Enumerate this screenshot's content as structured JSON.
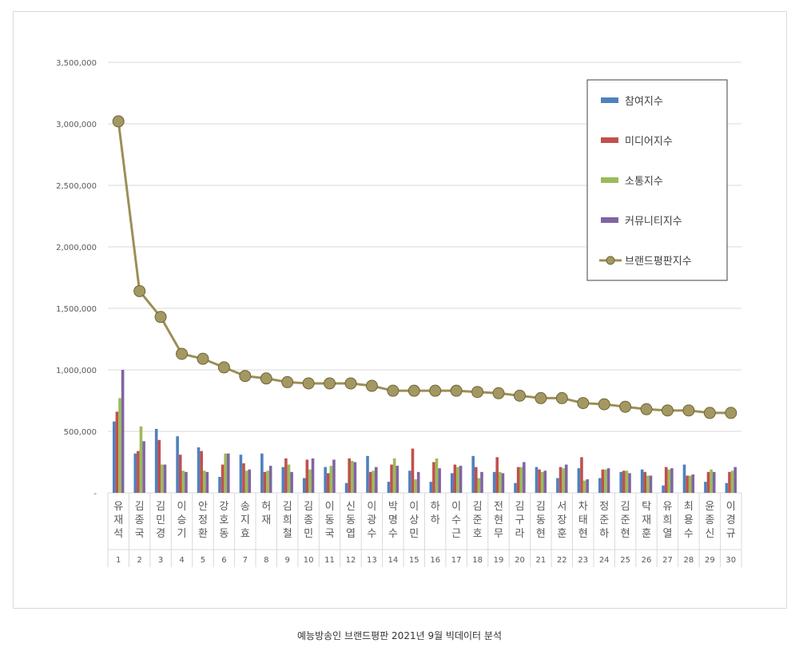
{
  "caption": "예능방송인 브랜드평판  2021년 9월 빅데이터 분석",
  "chart_data": {
    "type": "bar",
    "title": "",
    "xlabel": "",
    "ylabel": "",
    "ylim": [
      0,
      3500000
    ],
    "y_ticks": [
      0,
      500000,
      1000000,
      1500000,
      2000000,
      2500000,
      3000000,
      3500000
    ],
    "y_tick_labels": [
      "-",
      "500,000",
      "1,000,000",
      "1,500,000",
      "2,000,000",
      "2,500,000",
      "3,000,000",
      "3,500,000"
    ],
    "grid": true,
    "legend_position": "top-right",
    "ranks": [
      "1",
      "2",
      "3",
      "4",
      "5",
      "6",
      "7",
      "8",
      "9",
      "10",
      "11",
      "12",
      "13",
      "14",
      "15",
      "16",
      "17",
      "18",
      "19",
      "20",
      "21",
      "22",
      "23",
      "24",
      "25",
      "26",
      "27",
      "28",
      "29",
      "30"
    ],
    "categories": [
      "유재석",
      "김종국",
      "김민경",
      "이승기",
      "안정환",
      "강호동",
      "송지효",
      "허재",
      "김희철",
      "김종민",
      "이동국",
      "신동엽",
      "이광수",
      "박명수",
      "이상민",
      "하하",
      "이수근",
      "김준호",
      "전현무",
      "김구라",
      "김동현",
      "서장훈",
      "차태현",
      "정준하",
      "김준현",
      "탁재훈",
      "유희열",
      "최용수",
      "윤종신",
      "이경규"
    ],
    "series": [
      {
        "name": "참여지수",
        "kind": "bar",
        "color": "#4f81bd",
        "values": [
          580000,
          320000,
          520000,
          460000,
          370000,
          130000,
          310000,
          320000,
          210000,
          120000,
          210000,
          80000,
          300000,
          90000,
          180000,
          90000,
          160000,
          300000,
          170000,
          80000,
          210000,
          120000,
          200000,
          120000,
          170000,
          190000,
          60000,
          230000,
          90000,
          80000
        ]
      },
      {
        "name": "미디어지수",
        "kind": "bar",
        "color": "#c0504d",
        "values": [
          660000,
          340000,
          430000,
          310000,
          340000,
          230000,
          240000,
          170000,
          280000,
          270000,
          160000,
          280000,
          170000,
          230000,
          360000,
          250000,
          230000,
          210000,
          290000,
          210000,
          190000,
          210000,
          290000,
          190000,
          180000,
          170000,
          210000,
          140000,
          170000,
          170000
        ]
      },
      {
        "name": "소통지수",
        "kind": "bar",
        "color": "#9bbb59",
        "values": [
          770000,
          540000,
          230000,
          180000,
          180000,
          320000,
          180000,
          180000,
          230000,
          190000,
          220000,
          260000,
          180000,
          280000,
          110000,
          280000,
          210000,
          120000,
          170000,
          210000,
          170000,
          200000,
          100000,
          190000,
          180000,
          140000,
          190000,
          140000,
          190000,
          180000
        ]
      },
      {
        "name": "커뮤니티지수",
        "kind": "bar",
        "color": "#8064a2",
        "values": [
          1000000,
          420000,
          230000,
          170000,
          170000,
          320000,
          190000,
          220000,
          170000,
          280000,
          270000,
          250000,
          210000,
          220000,
          170000,
          200000,
          220000,
          170000,
          160000,
          250000,
          180000,
          230000,
          110000,
          200000,
          160000,
          140000,
          200000,
          150000,
          170000,
          210000
        ]
      },
      {
        "name": "브랜드평판지수",
        "kind": "line",
        "color": "#9c8f55",
        "values": [
          3020000,
          1640000,
          1430000,
          1130000,
          1090000,
          1020000,
          950000,
          930000,
          900000,
          890000,
          890000,
          890000,
          870000,
          830000,
          830000,
          830000,
          830000,
          820000,
          810000,
          790000,
          770000,
          770000,
          730000,
          720000,
          700000,
          680000,
          670000,
          670000,
          650000,
          650000
        ]
      }
    ]
  }
}
